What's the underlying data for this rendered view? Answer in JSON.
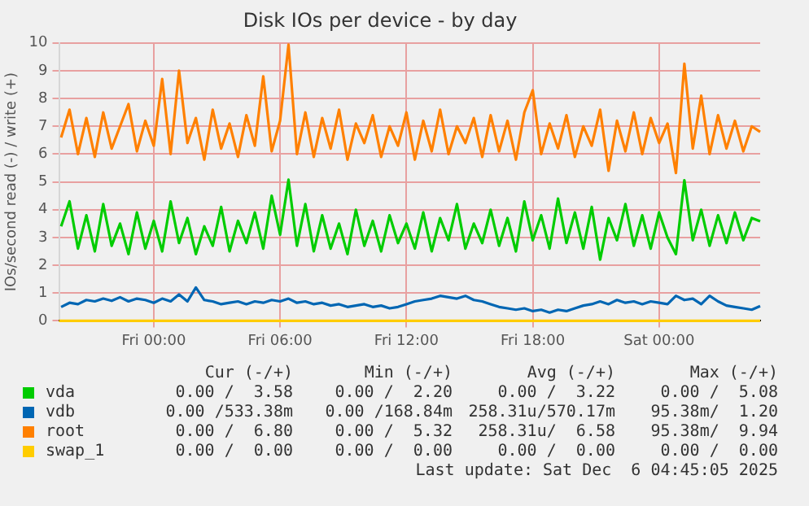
{
  "chart_data": {
    "type": "line",
    "title": "Disk IOs per device - by day",
    "ylabel": "IOs/second read (-) / write (+)",
    "x": [
      "2025-12-04T19:36",
      "2025-12-04T20:00",
      "2025-12-04T20:24",
      "2025-12-04T20:48",
      "2025-12-04T21:12",
      "2025-12-04T21:36",
      "2025-12-04T22:00",
      "2025-12-04T22:24",
      "2025-12-04T22:48",
      "2025-12-04T23:12",
      "2025-12-04T23:36",
      "2025-12-05T00:00",
      "2025-12-05T00:24",
      "2025-12-05T00:48",
      "2025-12-05T01:12",
      "2025-12-05T01:36",
      "2025-12-05T02:00",
      "2025-12-05T02:24",
      "2025-12-05T02:48",
      "2025-12-05T03:12",
      "2025-12-05T03:36",
      "2025-12-05T04:00",
      "2025-12-05T04:24",
      "2025-12-05T04:48",
      "2025-12-05T05:12",
      "2025-12-05T05:36",
      "2025-12-05T06:00",
      "2025-12-05T06:24",
      "2025-12-05T06:48",
      "2025-12-05T07:12",
      "2025-12-05T07:36",
      "2025-12-05T08:00",
      "2025-12-05T08:24",
      "2025-12-05T08:48",
      "2025-12-05T09:12",
      "2025-12-05T09:36",
      "2025-12-05T10:00",
      "2025-12-05T10:24",
      "2025-12-05T10:48",
      "2025-12-05T11:12",
      "2025-12-05T11:36",
      "2025-12-05T12:00",
      "2025-12-05T12:24",
      "2025-12-05T12:48",
      "2025-12-05T13:12",
      "2025-12-05T13:36",
      "2025-12-05T14:00",
      "2025-12-05T14:24",
      "2025-12-05T14:48",
      "2025-12-05T15:12",
      "2025-12-05T15:36",
      "2025-12-05T16:00",
      "2025-12-05T16:24",
      "2025-12-05T16:48",
      "2025-12-05T17:12",
      "2025-12-05T17:36",
      "2025-12-05T18:00",
      "2025-12-05T18:24",
      "2025-12-05T18:48",
      "2025-12-05T19:12",
      "2025-12-05T19:36",
      "2025-12-05T20:00",
      "2025-12-05T20:24",
      "2025-12-05T20:48",
      "2025-12-05T21:12",
      "2025-12-05T21:36",
      "2025-12-05T22:00",
      "2025-12-05T22:24",
      "2025-12-05T22:48",
      "2025-12-05T23:12",
      "2025-12-05T23:36",
      "2025-12-06T00:00",
      "2025-12-06T00:24",
      "2025-12-06T00:48",
      "2025-12-06T01:12",
      "2025-12-06T01:36",
      "2025-12-06T02:00",
      "2025-12-06T02:24",
      "2025-12-06T02:48",
      "2025-12-06T03:12",
      "2025-12-06T03:36",
      "2025-12-06T04:00",
      "2025-12-06T04:24",
      "2025-12-06T04:48"
    ],
    "series": [
      {
        "name": "vda",
        "color": "#00cc00",
        "values": [
          3.4,
          4.3,
          2.6,
          3.8,
          2.5,
          4.2,
          2.7,
          3.5,
          2.4,
          3.9,
          2.6,
          3.6,
          2.5,
          4.3,
          2.8,
          3.7,
          2.4,
          3.4,
          2.7,
          4.1,
          2.5,
          3.6,
          2.8,
          3.9,
          2.6,
          4.5,
          3.1,
          5.08,
          2.7,
          4.2,
          2.5,
          3.8,
          2.6,
          3.5,
          2.4,
          4.0,
          2.7,
          3.6,
          2.5,
          3.8,
          2.8,
          3.5,
          2.6,
          3.9,
          2.5,
          3.7,
          2.9,
          4.2,
          2.6,
          3.5,
          2.8,
          4.0,
          2.7,
          3.7,
          2.5,
          4.3,
          2.9,
          3.8,
          2.6,
          4.4,
          2.8,
          3.9,
          2.6,
          4.1,
          2.2,
          3.7,
          2.9,
          4.2,
          2.7,
          3.8,
          2.6,
          3.9,
          3.0,
          2.4,
          5.06,
          2.9,
          4.0,
          2.7,
          3.8,
          2.8,
          3.9,
          2.9,
          3.7,
          3.58
        ]
      },
      {
        "name": "vdb",
        "color": "#0066b3",
        "values": [
          0.5,
          0.65,
          0.6,
          0.75,
          0.7,
          0.8,
          0.72,
          0.85,
          0.7,
          0.8,
          0.75,
          0.65,
          0.8,
          0.7,
          0.95,
          0.7,
          1.2,
          0.75,
          0.7,
          0.6,
          0.65,
          0.7,
          0.6,
          0.7,
          0.65,
          0.75,
          0.7,
          0.8,
          0.65,
          0.7,
          0.6,
          0.65,
          0.55,
          0.6,
          0.5,
          0.55,
          0.6,
          0.5,
          0.55,
          0.45,
          0.5,
          0.6,
          0.7,
          0.75,
          0.8,
          0.9,
          0.85,
          0.8,
          0.9,
          0.75,
          0.7,
          0.6,
          0.5,
          0.45,
          0.4,
          0.45,
          0.35,
          0.4,
          0.3,
          0.4,
          0.35,
          0.45,
          0.55,
          0.6,
          0.7,
          0.6,
          0.75,
          0.65,
          0.7,
          0.6,
          0.7,
          0.65,
          0.6,
          0.9,
          0.75,
          0.8,
          0.6,
          0.9,
          0.7,
          0.55,
          0.5,
          0.45,
          0.4,
          0.53
        ]
      },
      {
        "name": "root",
        "color": "#ff8000",
        "values": [
          6.6,
          7.6,
          6.0,
          7.3,
          5.9,
          7.5,
          6.2,
          7.0,
          7.8,
          6.1,
          7.2,
          6.3,
          8.7,
          6.0,
          9.0,
          6.4,
          7.3,
          5.8,
          7.6,
          6.2,
          7.1,
          5.9,
          7.4,
          6.3,
          8.8,
          6.1,
          7.2,
          9.94,
          6.0,
          7.5,
          5.9,
          7.3,
          6.2,
          7.6,
          5.8,
          7.1,
          6.4,
          7.4,
          5.9,
          7.0,
          6.3,
          7.5,
          5.8,
          7.2,
          6.1,
          7.6,
          6.0,
          7.0,
          6.4,
          7.3,
          5.9,
          7.4,
          6.1,
          7.2,
          5.8,
          7.5,
          8.3,
          6.0,
          7.1,
          6.2,
          7.4,
          5.9,
          7.0,
          6.3,
          7.6,
          5.4,
          7.2,
          6.1,
          7.5,
          6.0,
          7.3,
          6.4,
          7.1,
          5.32,
          9.25,
          6.2,
          8.1,
          6.0,
          7.4,
          6.2,
          7.2,
          6.1,
          7.0,
          6.8
        ]
      },
      {
        "name": "swap_1",
        "color": "#ffcc00",
        "x": [
          "2025-12-04T19:30",
          "2025-12-06T04:48"
        ],
        "values": [
          0,
          0
        ]
      }
    ],
    "xlim": [
      "2025-12-04T19:30",
      "2025-12-06T04:48"
    ],
    "xticks": [
      {
        "value": "2025-12-05T00:00",
        "label": "Fri 00:00"
      },
      {
        "value": "2025-12-05T06:00",
        "label": "Fri 06:00"
      },
      {
        "value": "2025-12-05T12:00",
        "label": "Fri 12:00"
      },
      {
        "value": "2025-12-05T18:00",
        "label": "Fri 18:00"
      },
      {
        "value": "2025-12-06T00:00",
        "label": "Sat 00:00"
      }
    ],
    "ylim": [
      0,
      10
    ],
    "yticks": [
      0,
      1,
      2,
      3,
      4,
      5,
      6,
      7,
      8,
      9,
      10
    ],
    "grid": true,
    "legend": "bottom",
    "marker": "none",
    "line_style": "solid",
    "annotations": [
      "Cur (-/+)",
      "Min (-/+)",
      "Avg (-/+)",
      "Max (-/+)",
      "0.00 /  3.58",
      "0.00 /  2.20",
      "0.00 /  3.22",
      "0.00 /  5.08",
      "0.00 /533.38m",
      "0.00 /168.84m",
      "258.31u/570.17m",
      "95.38m/  1.20",
      "0.00 /  6.80",
      "0.00 /  5.32",
      "258.31u/  6.58",
      "95.38m/  9.94",
      "0.00 /  0.00",
      "0.00 /  0.00",
      "0.00 /  0.00",
      "0.00 /  0.00",
      "Last update: Sat Dec  6 04:45:05 2025"
    ]
  }
}
